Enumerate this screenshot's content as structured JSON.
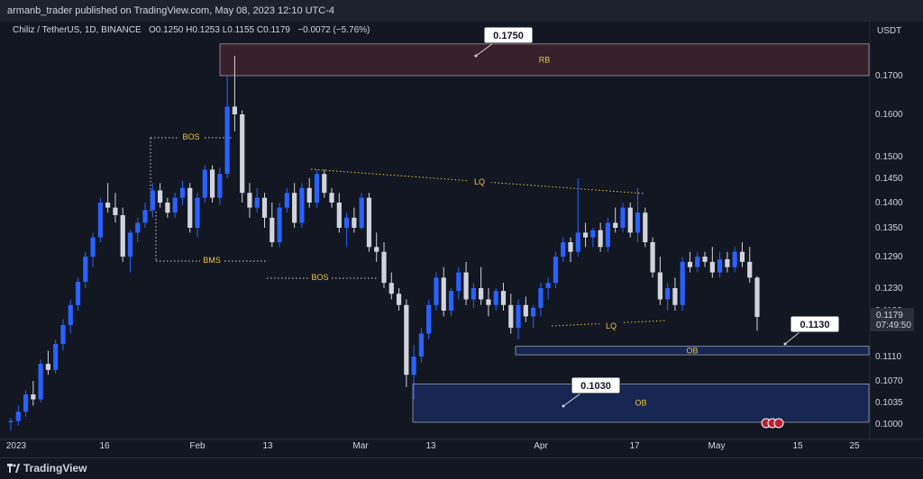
{
  "header": {
    "published": "armanb_trader published on TradingView.com, May 08, 2023 12:10 UTC-4"
  },
  "symbol": {
    "name": "Chiliz / TetherUS, 1D, BINANCE",
    "ohlc": "O0.1250  H0.1253  L0.1155  C0.1179",
    "change": "−0.0072 (−5.76%)"
  },
  "footer": {
    "brand": "TradingView"
  },
  "colors": {
    "up": "#2962ff",
    "down": "#d1d4dc",
    "bg": "#131722",
    "annotation": "#e8c547"
  },
  "chart_data": {
    "type": "candlestick",
    "currency": "USDT",
    "y_ticks": [
      "0.1700",
      "0.1600",
      "0.1500",
      "0.1450",
      "0.1400",
      "0.1350",
      "0.1290",
      "0.1230",
      "0.1190",
      "0.1110",
      "0.1070",
      "0.1035",
      "0.1000"
    ],
    "x_ticks": [
      "2023",
      "16",
      "Feb",
      "13",
      "Mar",
      "13",
      "Apr",
      "17",
      "May",
      "15",
      "25"
    ],
    "last_price": "0.1179",
    "countdown": "07:49:50",
    "zones": [
      {
        "label": "RB",
        "top": 0.178,
        "bottom": 0.17,
        "color": "#e05353"
      },
      {
        "label": "OB",
        "top": 0.1128,
        "bottom": 0.1113,
        "color": "#2962ff"
      },
      {
        "label": "OB",
        "top": 0.1065,
        "bottom": 0.1003,
        "color": "#2962ff"
      }
    ],
    "callouts": [
      "0.1750",
      "0.1130",
      "0.1030"
    ],
    "annotations": [
      "BOS",
      "BMS",
      "BOS",
      "LQ",
      "LQ"
    ],
    "candles": [
      [
        0.1003,
        0.101,
        0.099,
        0.1005
      ],
      [
        0.1005,
        0.103,
        0.0998,
        0.102
      ],
      [
        0.102,
        0.1055,
        0.1012,
        0.1048
      ],
      [
        0.1048,
        0.107,
        0.103,
        0.104
      ],
      [
        0.104,
        0.1105,
        0.1035,
        0.1098
      ],
      [
        0.1098,
        0.112,
        0.108,
        0.1088
      ],
      [
        0.1088,
        0.114,
        0.1082,
        0.1132
      ],
      [
        0.1132,
        0.1175,
        0.112,
        0.1165
      ],
      [
        0.1165,
        0.121,
        0.115,
        0.12
      ],
      [
        0.12,
        0.125,
        0.119,
        0.1242
      ],
      [
        0.1242,
        0.13,
        0.123,
        0.129
      ],
      [
        0.129,
        0.134,
        0.127,
        0.133
      ],
      [
        0.133,
        0.141,
        0.132,
        0.14
      ],
      [
        0.14,
        0.144,
        0.138,
        0.139
      ],
      [
        0.139,
        0.142,
        0.136,
        0.1375
      ],
      [
        0.1375,
        0.139,
        0.128,
        0.129
      ],
      [
        0.129,
        0.1345,
        0.126,
        0.134
      ],
      [
        0.134,
        0.137,
        0.132,
        0.136
      ],
      [
        0.136,
        0.14,
        0.135,
        0.1385
      ],
      [
        0.1385,
        0.144,
        0.137,
        0.1425
      ],
      [
        0.1425,
        0.144,
        0.139,
        0.14
      ],
      [
        0.14,
        0.141,
        0.137,
        0.138
      ],
      [
        0.138,
        0.142,
        0.137,
        0.141
      ],
      [
        0.141,
        0.1445,
        0.1395,
        0.143
      ],
      [
        0.143,
        0.144,
        0.134,
        0.135
      ],
      [
        0.135,
        0.142,
        0.133,
        0.141
      ],
      [
        0.141,
        0.148,
        0.14,
        0.147
      ],
      [
        0.147,
        0.148,
        0.14,
        0.141
      ],
      [
        0.141,
        0.1475,
        0.1395,
        0.146
      ],
      [
        0.146,
        0.17,
        0.145,
        0.162
      ],
      [
        0.162,
        0.175,
        0.156,
        0.16
      ],
      [
        0.16,
        0.161,
        0.14,
        0.142
      ],
      [
        0.142,
        0.144,
        0.137,
        0.139
      ],
      [
        0.139,
        0.143,
        0.138,
        0.141
      ],
      [
        0.141,
        0.142,
        0.135,
        0.137
      ],
      [
        0.137,
        0.14,
        0.131,
        0.132
      ],
      [
        0.132,
        0.14,
        0.131,
        0.139
      ],
      [
        0.139,
        0.143,
        0.138,
        0.142
      ],
      [
        0.142,
        0.144,
        0.135,
        0.136
      ],
      [
        0.136,
        0.144,
        0.135,
        0.143
      ],
      [
        0.143,
        0.145,
        0.139,
        0.14
      ],
      [
        0.14,
        0.147,
        0.139,
        0.146
      ],
      [
        0.146,
        0.147,
        0.141,
        0.142
      ],
      [
        0.142,
        0.143,
        0.139,
        0.14
      ],
      [
        0.14,
        0.142,
        0.134,
        0.135
      ],
      [
        0.135,
        0.138,
        0.131,
        0.137
      ],
      [
        0.137,
        0.139,
        0.134,
        0.135
      ],
      [
        0.135,
        0.142,
        0.1345,
        0.141
      ],
      [
        0.141,
        0.142,
        0.13,
        0.131
      ],
      [
        0.131,
        0.134,
        0.128,
        0.13
      ],
      [
        0.13,
        0.132,
        0.123,
        0.124
      ],
      [
        0.124,
        0.126,
        0.121,
        0.122
      ],
      [
        0.122,
        0.123,
        0.119,
        0.12
      ],
      [
        0.12,
        0.121,
        0.106,
        0.108
      ],
      [
        0.108,
        0.113,
        0.104,
        0.111
      ],
      [
        0.111,
        0.116,
        0.11,
        0.115
      ],
      [
        0.115,
        0.121,
        0.114,
        0.12
      ],
      [
        0.12,
        0.126,
        0.119,
        0.125
      ],
      [
        0.125,
        0.127,
        0.118,
        0.119
      ],
      [
        0.119,
        0.123,
        0.118,
        0.1225
      ],
      [
        0.1225,
        0.127,
        0.121,
        0.126
      ],
      [
        0.126,
        0.128,
        0.12,
        0.121
      ],
      [
        0.121,
        0.124,
        0.1195,
        0.123
      ],
      [
        0.123,
        0.127,
        0.12,
        0.121
      ],
      [
        0.121,
        0.123,
        0.118,
        0.12
      ],
      [
        0.12,
        0.123,
        0.119,
        0.1225
      ],
      [
        0.1225,
        0.124,
        0.119,
        0.12
      ],
      [
        0.12,
        0.122,
        0.115,
        0.116
      ],
      [
        0.116,
        0.121,
        0.114,
        0.12
      ],
      [
        0.12,
        0.1215,
        0.117,
        0.118
      ],
      [
        0.118,
        0.12,
        0.116,
        0.1195
      ],
      [
        0.1195,
        0.124,
        0.118,
        0.123
      ],
      [
        0.123,
        0.125,
        0.121,
        0.124
      ],
      [
        0.124,
        0.13,
        0.123,
        0.129
      ],
      [
        0.129,
        0.133,
        0.128,
        0.132
      ],
      [
        0.132,
        0.133,
        0.128,
        0.13
      ],
      [
        0.13,
        0.145,
        0.129,
        0.134
      ],
      [
        0.134,
        0.136,
        0.131,
        0.133
      ],
      [
        0.133,
        0.135,
        0.131,
        0.1345
      ],
      [
        0.1345,
        0.136,
        0.13,
        0.131
      ],
      [
        0.131,
        0.137,
        0.13,
        0.136
      ],
      [
        0.136,
        0.139,
        0.134,
        0.135
      ],
      [
        0.135,
        0.14,
        0.134,
        0.139
      ],
      [
        0.139,
        0.14,
        0.133,
        0.134
      ],
      [
        0.134,
        0.143,
        0.132,
        0.138
      ],
      [
        0.138,
        0.139,
        0.131,
        0.132
      ],
      [
        0.132,
        0.133,
        0.125,
        0.126
      ],
      [
        0.126,
        0.129,
        0.12,
        0.121
      ],
      [
        0.121,
        0.124,
        0.119,
        0.123
      ],
      [
        0.123,
        0.125,
        0.119,
        0.12
      ],
      [
        0.12,
        0.129,
        0.119,
        0.128
      ],
      [
        0.128,
        0.13,
        0.126,
        0.127
      ],
      [
        0.127,
        0.13,
        0.126,
        0.129
      ],
      [
        0.129,
        0.13,
        0.127,
        0.128
      ],
      [
        0.128,
        0.131,
        0.125,
        0.126
      ],
      [
        0.126,
        0.13,
        0.125,
        0.1285
      ],
      [
        0.1285,
        0.13,
        0.126,
        0.127
      ],
      [
        0.127,
        0.131,
        0.126,
        0.13
      ],
      [
        0.13,
        0.132,
        0.127,
        0.128
      ],
      [
        0.128,
        0.131,
        0.124,
        0.125
      ],
      [
        0.125,
        0.1253,
        0.1155,
        0.1179
      ]
    ]
  }
}
